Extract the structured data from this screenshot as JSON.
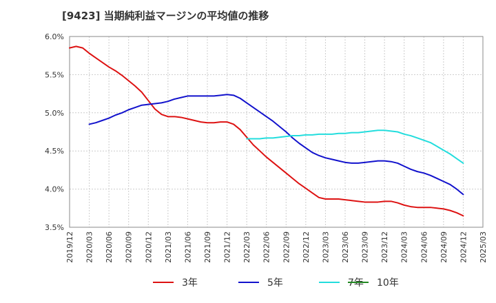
{
  "chart_data": {
    "type": "line",
    "title": "[9423]  当期純利益マージンの平均値の推移",
    "xlabel": "",
    "ylabel": "",
    "ylim": [
      3.5,
      6.0
    ],
    "xlim": [
      "2019/12",
      "2025/03"
    ],
    "y_ticks": [
      "6.0%",
      "5.5%",
      "5.0%",
      "4.5%",
      "4.0%",
      "3.5%"
    ],
    "y_tick_values": [
      6.0,
      5.5,
      5.0,
      4.5,
      4.0,
      3.5
    ],
    "x_ticks": [
      "2019/12",
      "2020/03",
      "2020/06",
      "2020/09",
      "2020/12",
      "2021/03",
      "2021/06",
      "2021/09",
      "2021/12",
      "2022/03",
      "2022/06",
      "2022/09",
      "2022/12",
      "2023/03",
      "2023/06",
      "2023/09",
      "2023/12",
      "2024/03",
      "2024/06",
      "2024/09",
      "2024/12",
      "2025/03"
    ],
    "grid": true,
    "legend_position": "bottom",
    "series": [
      {
        "name": "3年",
        "color": "#dd1111",
        "points": [
          [
            "2019/12",
            5.85
          ],
          [
            "2020/01",
            5.87
          ],
          [
            "2020/02",
            5.85
          ],
          [
            "2020/03",
            5.78
          ],
          [
            "2020/04",
            5.72
          ],
          [
            "2020/05",
            5.66
          ],
          [
            "2020/06",
            5.6
          ],
          [
            "2020/07",
            5.55
          ],
          [
            "2020/08",
            5.49
          ],
          [
            "2020/09",
            5.42
          ],
          [
            "2020/10",
            5.35
          ],
          [
            "2020/11",
            5.27
          ],
          [
            "2020/12",
            5.16
          ],
          [
            "2021/01",
            5.05
          ],
          [
            "2021/02",
            4.98
          ],
          [
            "2021/03",
            4.95
          ],
          [
            "2021/04",
            4.95
          ],
          [
            "2021/05",
            4.94
          ],
          [
            "2021/06",
            4.92
          ],
          [
            "2021/07",
            4.9
          ],
          [
            "2021/08",
            4.88
          ],
          [
            "2021/09",
            4.87
          ],
          [
            "2021/10",
            4.87
          ],
          [
            "2021/11",
            4.88
          ],
          [
            "2021/12",
            4.88
          ],
          [
            "2022/01",
            4.85
          ],
          [
            "2022/02",
            4.78
          ],
          [
            "2022/03",
            4.68
          ],
          [
            "2022/04",
            4.58
          ],
          [
            "2022/05",
            4.5
          ],
          [
            "2022/06",
            4.42
          ],
          [
            "2022/07",
            4.35
          ],
          [
            "2022/08",
            4.28
          ],
          [
            "2022/09",
            4.21
          ],
          [
            "2022/10",
            4.14
          ],
          [
            "2022/11",
            4.07
          ],
          [
            "2022/12",
            4.01
          ],
          [
            "2023/01",
            3.95
          ],
          [
            "2023/02",
            3.89
          ],
          [
            "2023/03",
            3.87
          ],
          [
            "2023/04",
            3.87
          ],
          [
            "2023/05",
            3.87
          ],
          [
            "2023/06",
            3.86
          ],
          [
            "2023/07",
            3.85
          ],
          [
            "2023/08",
            3.84
          ],
          [
            "2023/09",
            3.83
          ],
          [
            "2023/10",
            3.83
          ],
          [
            "2023/11",
            3.83
          ],
          [
            "2023/12",
            3.84
          ],
          [
            "2024/01",
            3.84
          ],
          [
            "2024/02",
            3.82
          ],
          [
            "2024/03",
            3.79
          ],
          [
            "2024/04",
            3.77
          ],
          [
            "2024/05",
            3.76
          ],
          [
            "2024/06",
            3.76
          ],
          [
            "2024/07",
            3.76
          ],
          [
            "2024/08",
            3.75
          ],
          [
            "2024/09",
            3.74
          ],
          [
            "2024/10",
            3.72
          ],
          [
            "2024/11",
            3.69
          ],
          [
            "2024/12",
            3.65
          ]
        ]
      },
      {
        "name": "5年",
        "color": "#1111cc",
        "points": [
          [
            "2020/03",
            4.85
          ],
          [
            "2020/04",
            4.87
          ],
          [
            "2020/05",
            4.9
          ],
          [
            "2020/06",
            4.93
          ],
          [
            "2020/07",
            4.97
          ],
          [
            "2020/08",
            5.0
          ],
          [
            "2020/09",
            5.04
          ],
          [
            "2020/10",
            5.07
          ],
          [
            "2020/11",
            5.1
          ],
          [
            "2020/12",
            5.11
          ],
          [
            "2021/01",
            5.12
          ],
          [
            "2021/02",
            5.13
          ],
          [
            "2021/03",
            5.15
          ],
          [
            "2021/04",
            5.18
          ],
          [
            "2021/05",
            5.2
          ],
          [
            "2021/06",
            5.22
          ],
          [
            "2021/07",
            5.22
          ],
          [
            "2021/08",
            5.22
          ],
          [
            "2021/09",
            5.22
          ],
          [
            "2021/10",
            5.22
          ],
          [
            "2021/11",
            5.23
          ],
          [
            "2021/12",
            5.24
          ],
          [
            "2022/01",
            5.23
          ],
          [
            "2022/02",
            5.19
          ],
          [
            "2022/03",
            5.13
          ],
          [
            "2022/04",
            5.07
          ],
          [
            "2022/05",
            5.01
          ],
          [
            "2022/06",
            4.95
          ],
          [
            "2022/07",
            4.89
          ],
          [
            "2022/08",
            4.82
          ],
          [
            "2022/09",
            4.75
          ],
          [
            "2022/10",
            4.67
          ],
          [
            "2022/11",
            4.6
          ],
          [
            "2022/12",
            4.54
          ],
          [
            "2023/01",
            4.48
          ],
          [
            "2023/02",
            4.44
          ],
          [
            "2023/03",
            4.41
          ],
          [
            "2023/04",
            4.39
          ],
          [
            "2023/05",
            4.37
          ],
          [
            "2023/06",
            4.35
          ],
          [
            "2023/07",
            4.34
          ],
          [
            "2023/08",
            4.34
          ],
          [
            "2023/09",
            4.35
          ],
          [
            "2023/10",
            4.36
          ],
          [
            "2023/11",
            4.37
          ],
          [
            "2023/12",
            4.37
          ],
          [
            "2024/01",
            4.36
          ],
          [
            "2024/02",
            4.34
          ],
          [
            "2024/03",
            4.3
          ],
          [
            "2024/04",
            4.26
          ],
          [
            "2024/05",
            4.23
          ],
          [
            "2024/06",
            4.21
          ],
          [
            "2024/07",
            4.18
          ],
          [
            "2024/08",
            4.14
          ],
          [
            "2024/09",
            4.1
          ],
          [
            "2024/10",
            4.06
          ],
          [
            "2024/11",
            4.0
          ],
          [
            "2024/12",
            3.93
          ]
        ]
      },
      {
        "name": "7年",
        "color": "#22dddd",
        "points": [
          [
            "2022/03",
            4.66
          ],
          [
            "2022/04",
            4.66
          ],
          [
            "2022/05",
            4.66
          ],
          [
            "2022/06",
            4.67
          ],
          [
            "2022/07",
            4.67
          ],
          [
            "2022/08",
            4.68
          ],
          [
            "2022/09",
            4.69
          ],
          [
            "2022/10",
            4.7
          ],
          [
            "2022/11",
            4.7
          ],
          [
            "2022/12",
            4.71
          ],
          [
            "2023/01",
            4.71
          ],
          [
            "2023/02",
            4.72
          ],
          [
            "2023/03",
            4.72
          ],
          [
            "2023/04",
            4.72
          ],
          [
            "2023/05",
            4.73
          ],
          [
            "2023/06",
            4.73
          ],
          [
            "2023/07",
            4.74
          ],
          [
            "2023/08",
            4.74
          ],
          [
            "2023/09",
            4.75
          ],
          [
            "2023/10",
            4.76
          ],
          [
            "2023/11",
            4.77
          ],
          [
            "2023/12",
            4.77
          ],
          [
            "2024/01",
            4.76
          ],
          [
            "2024/02",
            4.75
          ],
          [
            "2024/03",
            4.72
          ],
          [
            "2024/04",
            4.7
          ],
          [
            "2024/05",
            4.67
          ],
          [
            "2024/06",
            4.64
          ],
          [
            "2024/07",
            4.61
          ],
          [
            "2024/08",
            4.56
          ],
          [
            "2024/09",
            4.51
          ],
          [
            "2024/10",
            4.46
          ],
          [
            "2024/11",
            4.4
          ],
          [
            "2024/12",
            4.34
          ]
        ]
      },
      {
        "name": "10年",
        "color": "#228822",
        "points": []
      }
    ]
  }
}
